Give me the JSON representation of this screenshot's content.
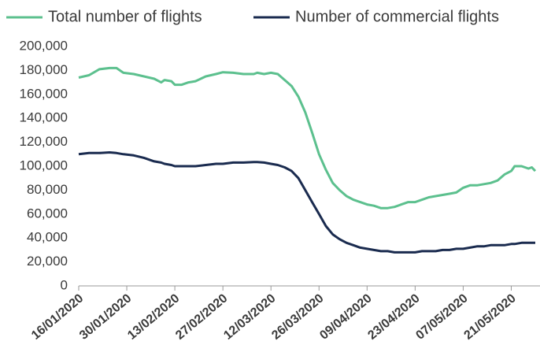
{
  "chart_data": {
    "type": "line",
    "x": [
      "16/01/2020",
      "19/01/2020",
      "22/01/2020",
      "25/01/2020",
      "27/01/2020",
      "29/01/2020",
      "01/02/2020",
      "04/02/2020",
      "07/02/2020",
      "09/02/2020",
      "10/02/2020",
      "12/02/2020",
      "13/02/2020",
      "15/02/2020",
      "17/02/2020",
      "19/02/2020",
      "22/02/2020",
      "25/02/2020",
      "27/02/2020",
      "01/03/2020",
      "04/03/2020",
      "07/03/2020",
      "08/03/2020",
      "10/03/2020",
      "12/03/2020",
      "14/03/2020",
      "16/03/2020",
      "18/03/2020",
      "20/03/2020",
      "22/03/2020",
      "24/03/2020",
      "26/03/2020",
      "28/03/2020",
      "30/03/2020",
      "01/04/2020",
      "03/04/2020",
      "05/04/2020",
      "07/04/2020",
      "09/04/2020",
      "11/04/2020",
      "13/04/2020",
      "15/04/2020",
      "17/04/2020",
      "19/04/2020",
      "21/04/2020",
      "23/04/2020",
      "25/04/2020",
      "27/04/2020",
      "29/04/2020",
      "01/05/2020",
      "03/05/2020",
      "05/05/2020",
      "07/05/2020",
      "09/05/2020",
      "11/05/2020",
      "13/05/2020",
      "15/05/2020",
      "17/05/2020",
      "19/05/2020",
      "21/05/2020",
      "22/05/2020",
      "24/05/2020",
      "26/05/2020",
      "27/05/2020",
      "28/05/2020"
    ],
    "series": [
      {
        "name": "Total number of flights",
        "color": "#5cc08e",
        "values": [
          174000,
          176000,
          181000,
          182000,
          182000,
          178000,
          177000,
          175000,
          173000,
          170000,
          172000,
          171000,
          168000,
          168000,
          170000,
          171000,
          175000,
          177000,
          178500,
          178000,
          177000,
          177000,
          178000,
          177000,
          178000,
          177000,
          172000,
          167000,
          158000,
          145000,
          128000,
          110000,
          97000,
          86000,
          80000,
          75000,
          72000,
          70000,
          68000,
          67000,
          65000,
          65000,
          66000,
          68000,
          70000,
          70000,
          72000,
          74000,
          75000,
          76000,
          77000,
          78000,
          82000,
          84000,
          84000,
          85000,
          86000,
          88000,
          93000,
          96000,
          100000,
          100000,
          98000,
          99000,
          96000
        ]
      },
      {
        "name": "Number of commercial flights",
        "color": "#1a2b4f",
        "values": [
          110000,
          111000,
          111000,
          111500,
          111000,
          110000,
          109000,
          107000,
          104000,
          103000,
          102000,
          101000,
          100000,
          100000,
          100000,
          100000,
          101000,
          102000,
          102000,
          103000,
          103000,
          103500,
          103500,
          103000,
          102000,
          101000,
          99000,
          96000,
          90000,
          80000,
          70000,
          60000,
          50000,
          43000,
          39000,
          36000,
          34000,
          32000,
          31000,
          30000,
          29000,
          29000,
          28000,
          28000,
          28000,
          28000,
          29000,
          29000,
          29000,
          30000,
          30000,
          31000,
          31000,
          32000,
          33000,
          33000,
          34000,
          34000,
          34000,
          35000,
          35000,
          36000,
          36000,
          36000,
          36000
        ]
      }
    ],
    "xlim": [
      "16/01/2020",
      "28/05/2020"
    ],
    "xticks": [
      "16/01/2020",
      "30/01/2020",
      "13/02/2020",
      "27/02/2020",
      "12/03/2020",
      "26/03/2020",
      "09/04/2020",
      "23/04/2020",
      "07/05/2020",
      "21/05/2020"
    ],
    "ylim": [
      0,
      200000
    ],
    "yticks": [
      0,
      {
        "value": 20000,
        "label": "20,000"
      },
      {
        "value": 40000,
        "label": "40,000"
      },
      {
        "value": 60000,
        "label": "60,000"
      },
      {
        "value": 80000,
        "label": "80,000"
      },
      {
        "value": 100000,
        "label": "100,000"
      },
      {
        "value": 120000,
        "label": "120,000"
      },
      {
        "value": 140000,
        "label": "140,000"
      },
      {
        "value": 160000,
        "label": "160,000"
      },
      {
        "value": 180000,
        "label": "180,000"
      },
      {
        "value": 200000,
        "label": "200,000"
      }
    ],
    "legend": "top"
  }
}
